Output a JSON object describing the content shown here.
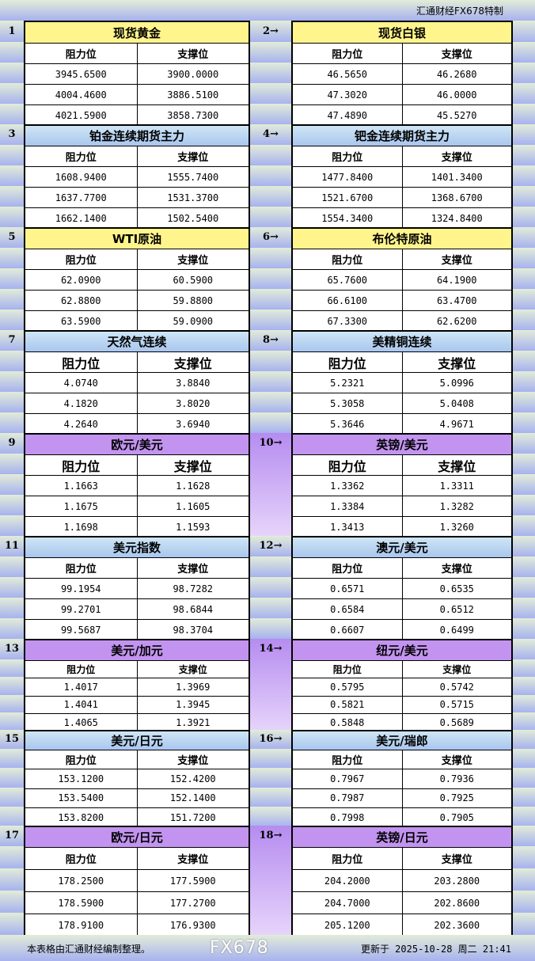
{
  "header_credit": "汇通财经FX678特制",
  "col_labels": [
    "阻力位",
    "支撑位"
  ],
  "sections": [
    {
      "no": "1",
      "name": "现货黄金",
      "style": "y",
      "rows": [
        [
          "3945.6500",
          "3900.0000"
        ],
        [
          "4004.4600",
          "3886.5100"
        ],
        [
          "4021.5900",
          "3858.7300"
        ]
      ]
    },
    {
      "no": "2→",
      "name": "现货白银",
      "style": "y",
      "rows": [
        [
          "46.5650",
          "46.2680"
        ],
        [
          "47.3020",
          "46.0000"
        ],
        [
          "47.4890",
          "45.5270"
        ]
      ]
    },
    {
      "no": "3",
      "name": "铂金连续期货主力",
      "style": "b",
      "rows": [
        [
          "1608.9400",
          "1555.7400"
        ],
        [
          "1637.7700",
          "1531.3700"
        ],
        [
          "1662.1400",
          "1502.5400"
        ]
      ]
    },
    {
      "no": "4→",
      "name": "钯金连续期货主力",
      "style": "b",
      "rows": [
        [
          "1477.8400",
          "1401.3400"
        ],
        [
          "1521.6700",
          "1368.6700"
        ],
        [
          "1554.3400",
          "1324.8400"
        ]
      ]
    },
    {
      "no": "5",
      "name": "WTI原油",
      "style": "y",
      "rows": [
        [
          "62.0900",
          "60.5900"
        ],
        [
          "62.8800",
          "59.8800"
        ],
        [
          "63.5900",
          "59.0900"
        ]
      ]
    },
    {
      "no": "6→",
      "name": "布伦特原油",
      "style": "y",
      "rows": [
        [
          "65.7600",
          "64.1900"
        ],
        [
          "66.6100",
          "63.4700"
        ],
        [
          "67.3300",
          "62.6200"
        ]
      ]
    },
    {
      "no": "7",
      "name": "天然气连续",
      "style": "b",
      "rows": [
        [
          "4.0740",
          "3.8840"
        ],
        [
          "4.1820",
          "3.8020"
        ],
        [
          "4.2640",
          "3.6940"
        ]
      ]
    },
    {
      "no": "8→",
      "name": "美精铜连续",
      "style": "b",
      "rows": [
        [
          "5.2321",
          "5.0996"
        ],
        [
          "5.3058",
          "5.0408"
        ],
        [
          "5.3646",
          "4.9671"
        ]
      ]
    },
    {
      "no": "9",
      "name": "欧元/美元",
      "style": "p",
      "rows": [
        [
          "1.1663",
          "1.1628"
        ],
        [
          "1.1675",
          "1.1605"
        ],
        [
          "1.1698",
          "1.1593"
        ]
      ]
    },
    {
      "no": "10→",
      "name": "英镑/美元",
      "style": "p",
      "rows": [
        [
          "1.3362",
          "1.3311"
        ],
        [
          "1.3384",
          "1.3282"
        ],
        [
          "1.3413",
          "1.3260"
        ]
      ]
    },
    {
      "no": "11",
      "name": "美元指数",
      "style": "b",
      "rows": [
        [
          "99.1954",
          "98.7282"
        ],
        [
          "99.2701",
          "98.6844"
        ],
        [
          "99.5687",
          "98.3704"
        ]
      ]
    },
    {
      "no": "12→",
      "name": "澳元/美元",
      "style": "b",
      "rows": [
        [
          "0.6571",
          "0.6535"
        ],
        [
          "0.6584",
          "0.6512"
        ],
        [
          "0.6607",
          "0.6499"
        ]
      ]
    },
    {
      "no": "13",
      "name": "美元/加元",
      "style": "p",
      "rows": [
        [
          "1.4017",
          "1.3969"
        ],
        [
          "1.4041",
          "1.3945"
        ],
        [
          "1.4065",
          "1.3921"
        ]
      ]
    },
    {
      "no": "14→",
      "name": "纽元/美元",
      "style": "p",
      "rows": [
        [
          "0.5795",
          "0.5742"
        ],
        [
          "0.5821",
          "0.5715"
        ],
        [
          "0.5848",
          "0.5689"
        ]
      ]
    },
    {
      "no": "15",
      "name": "美元/日元",
      "style": "b",
      "rows": [
        [
          "153.1200",
          "152.4200"
        ],
        [
          "153.5400",
          "152.1400"
        ],
        [
          "153.8200",
          "151.7200"
        ]
      ]
    },
    {
      "no": "16→",
      "name": "美元/瑞郎",
      "style": "b",
      "rows": [
        [
          "0.7967",
          "0.7936"
        ],
        [
          "0.7987",
          "0.7925"
        ],
        [
          "0.7998",
          "0.7905"
        ]
      ]
    },
    {
      "no": "17",
      "name": "欧元/日元",
      "style": "p",
      "rows": [
        [
          "178.2500",
          "177.5900"
        ],
        [
          "178.5900",
          "177.2700"
        ],
        [
          "178.9100",
          "176.9300"
        ]
      ]
    },
    {
      "no": "18→",
      "name": "英镑/日元",
      "style": "p",
      "rows": [
        [
          "204.2000",
          "203.2800"
        ],
        [
          "204.7000",
          "202.8600"
        ],
        [
          "205.1200",
          "202.3600"
        ]
      ]
    }
  ],
  "footer": {
    "note": "本表格由汇通财经编制整理。",
    "updated": "更新于 2025-10-28 周二 21:41"
  },
  "watermark": "FX678"
}
